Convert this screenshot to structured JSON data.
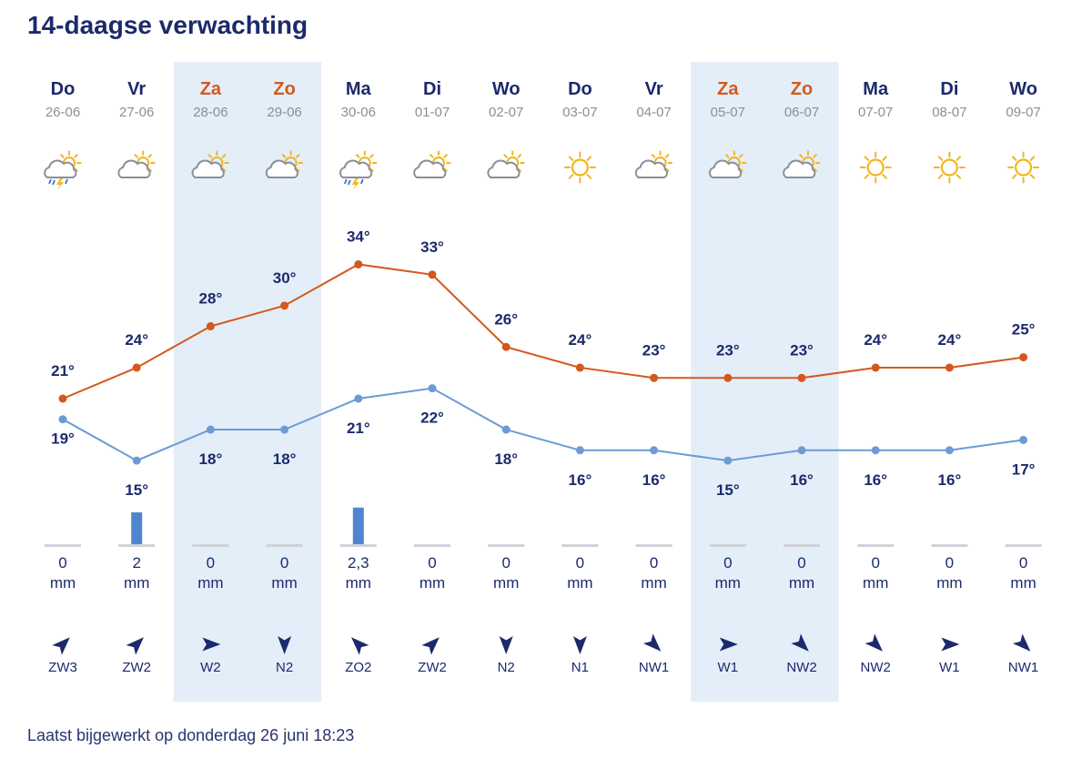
{
  "title": "14-daagse verwachting",
  "footer": "Laatst bijgewerkt op donderdag 26 juni 18:23",
  "colors": {
    "max_line": "#d4581c",
    "min_line": "#6c9bd6",
    "weekend_band": "#e4eef8",
    "weekend_text": "#d4581c",
    "weekday_text": "#1b2a6b",
    "date_text": "#8a8f99",
    "rain_bar": "#4f85cf",
    "rain_base": "#cfd3d8",
    "sun": "#f0b623",
    "cloud": "#8a8f99",
    "wind_arrow": "#1b2a6b"
  },
  "chart_data": {
    "type": "line",
    "categories": [
      "Do",
      "Vr",
      "Za",
      "Zo",
      "Ma",
      "Di",
      "Wo",
      "Do",
      "Vr",
      "Za",
      "Zo",
      "Ma",
      "Di",
      "Wo"
    ],
    "dates": [
      "26-06",
      "27-06",
      "28-06",
      "29-06",
      "30-06",
      "01-07",
      "02-07",
      "03-07",
      "04-07",
      "05-07",
      "06-07",
      "07-07",
      "08-07",
      "09-07"
    ],
    "weekend": [
      false,
      false,
      true,
      true,
      false,
      false,
      false,
      false,
      false,
      true,
      true,
      false,
      false,
      false
    ],
    "icons": [
      "sun-cloud-thunder-icon",
      "sun-cloud-icon",
      "sun-cloud-icon",
      "sun-cloud-icon",
      "sun-cloud-thunder-icon",
      "sun-cloud-icon",
      "sun-cloud-icon",
      "sun-icon",
      "sun-cloud-icon",
      "sun-cloud-icon",
      "sun-cloud-icon",
      "sun-icon",
      "sun-icon",
      "sun-icon"
    ],
    "series": [
      {
        "key": "max",
        "values": [
          21,
          24,
          28,
          30,
          34,
          33,
          26,
          24,
          23,
          23,
          23,
          24,
          24,
          25
        ]
      },
      {
        "key": "min",
        "values": [
          19,
          15,
          18,
          18,
          21,
          22,
          18,
          16,
          16,
          15,
          16,
          16,
          16,
          17
        ]
      }
    ],
    "temp_labels": {
      "max": [
        "21°",
        "24°",
        "28°",
        "30°",
        "34°",
        "33°",
        "26°",
        "24°",
        "23°",
        "23°",
        "23°",
        "24°",
        "24°",
        "25°"
      ],
      "min": [
        "19°",
        "15°",
        "18°",
        "18°",
        "21°",
        "22°",
        "18°",
        "16°",
        "16°",
        "15°",
        "16°",
        "16°",
        "16°",
        "17°"
      ]
    },
    "precipitation": {
      "values": [
        0,
        2,
        0,
        0,
        2.3,
        0,
        0,
        0,
        0,
        0,
        0,
        0,
        0,
        0
      ],
      "labels": [
        "0",
        "2",
        "0",
        "0",
        "2,3",
        "0",
        "0",
        "0",
        "0",
        "0",
        "0",
        "0",
        "0",
        "0"
      ],
      "unit": "mm"
    },
    "wind": {
      "labels": [
        "ZW3",
        "ZW2",
        "W2",
        "N2",
        "ZO2",
        "ZW2",
        "N2",
        "N1",
        "NW1",
        "W1",
        "NW2",
        "NW2",
        "W1",
        "NW1"
      ]
    }
  }
}
